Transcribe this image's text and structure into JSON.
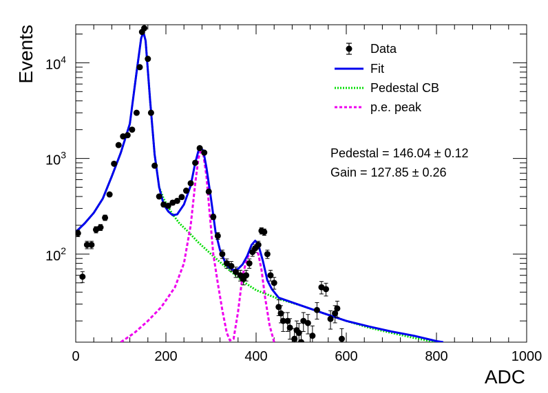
{
  "chart_data": {
    "type": "scatter",
    "xlabel": "ADC",
    "ylabel": "Events",
    "xlim": [
      0,
      1000
    ],
    "ylim": [
      12,
      25000
    ],
    "y_scale": "log",
    "x_ticks": [
      "0",
      "200",
      "400",
      "600",
      "800",
      "1000"
    ],
    "y_ticks": [
      {
        "value": 100,
        "base": "10",
        "exp": "2"
      },
      {
        "value": 1000,
        "base": "10",
        "exp": "3"
      },
      {
        "value": 10000,
        "base": "10",
        "exp": "4"
      }
    ],
    "grid": false,
    "legend_position": "top-right",
    "legend": [
      "Data",
      "Fit",
      "Pedestal CB",
      "p.e. peak"
    ],
    "annotations": [
      "Pedestal = 146.04 ± 0.12",
      "Gain = 127.85 ± 0.26"
    ],
    "colors": {
      "data": "#000000",
      "fit": "#0000ee",
      "pedestal": "#00dd00",
      "pe_peak": "#ee00ee"
    },
    "series": [
      {
        "name": "Data",
        "style": "markers_with_errors",
        "points": [
          [
            5,
            165
          ],
          [
            15,
            58
          ],
          [
            25,
            125
          ],
          [
            35,
            125
          ],
          [
            45,
            180
          ],
          [
            55,
            190
          ],
          [
            65,
            240
          ],
          [
            75,
            420
          ],
          [
            85,
            880
          ],
          [
            95,
            1380
          ],
          [
            105,
            1700
          ],
          [
            115,
            1750
          ],
          [
            125,
            2000
          ],
          [
            135,
            3000
          ],
          [
            142,
            9000
          ],
          [
            147,
            21000
          ],
          [
            152,
            23000
          ],
          [
            160,
            11000
          ],
          [
            167,
            3000
          ],
          [
            175,
            840
          ],
          [
            185,
            400
          ],
          [
            195,
            330
          ],
          [
            205,
            320
          ],
          [
            215,
            345
          ],
          [
            225,
            360
          ],
          [
            235,
            395
          ],
          [
            245,
            460
          ],
          [
            255,
            550
          ],
          [
            265,
            900
          ],
          [
            275,
            1280
          ],
          [
            285,
            1150
          ],
          [
            295,
            450
          ],
          [
            305,
            245
          ],
          [
            315,
            155
          ],
          [
            325,
            100
          ],
          [
            335,
            80
          ],
          [
            345,
            75
          ],
          [
            355,
            65
          ],
          [
            365,
            60
          ],
          [
            372,
            55
          ],
          [
            378,
            60
          ],
          [
            385,
            80
          ],
          [
            392,
            105
          ],
          [
            398,
            115
          ],
          [
            405,
            125
          ],
          [
            412,
            175
          ],
          [
            418,
            170
          ],
          [
            425,
            100
          ],
          [
            432,
            60
          ],
          [
            440,
            50
          ],
          [
            450,
            28
          ],
          [
            455,
            24
          ],
          [
            460,
            20
          ],
          [
            470,
            20
          ],
          [
            475,
            17
          ],
          [
            485,
            13
          ],
          [
            490,
            16
          ],
          [
            495,
            15
          ],
          [
            500,
            12
          ],
          [
            505,
            20
          ],
          [
            515,
            19
          ],
          [
            525,
            14
          ],
          [
            535,
            26
          ],
          [
            545,
            45
          ],
          [
            555,
            43
          ],
          [
            565,
            21
          ],
          [
            575,
            24
          ],
          [
            580,
            27
          ],
          [
            590,
            13
          ]
        ]
      },
      {
        "name": "Fit",
        "points": [
          [
            0,
            170
          ],
          [
            20,
            210
          ],
          [
            40,
            270
          ],
          [
            60,
            380
          ],
          [
            80,
            650
          ],
          [
            100,
            1150
          ],
          [
            120,
            2300
          ],
          [
            135,
            8000
          ],
          [
            145,
            18000
          ],
          [
            150,
            21000
          ],
          [
            155,
            17000
          ],
          [
            165,
            4000
          ],
          [
            175,
            1100
          ],
          [
            185,
            500
          ],
          [
            195,
            330
          ],
          [
            205,
            280
          ],
          [
            215,
            255
          ],
          [
            225,
            260
          ],
          [
            240,
            330
          ],
          [
            255,
            520
          ],
          [
            265,
            900
          ],
          [
            272,
            1200
          ],
          [
            277,
            1300
          ],
          [
            283,
            1200
          ],
          [
            290,
            800
          ],
          [
            300,
            380
          ],
          [
            310,
            170
          ],
          [
            320,
            110
          ],
          [
            330,
            85
          ],
          [
            340,
            72
          ],
          [
            350,
            68
          ],
          [
            360,
            70
          ],
          [
            370,
            78
          ],
          [
            380,
            95
          ],
          [
            390,
            125
          ],
          [
            398,
            138
          ],
          [
            405,
            125
          ],
          [
            415,
            85
          ],
          [
            425,
            53
          ],
          [
            435,
            43
          ],
          [
            450,
            35
          ],
          [
            500,
            29
          ],
          [
            550,
            24
          ],
          [
            600,
            20
          ],
          [
            650,
            17.5
          ],
          [
            700,
            15.5
          ],
          [
            750,
            14
          ],
          [
            800,
            12.3
          ],
          [
            815,
            12
          ]
        ]
      },
      {
        "name": "Pedestal CB",
        "points": [
          [
            0,
            170
          ],
          [
            20,
            210
          ],
          [
            40,
            270
          ],
          [
            60,
            380
          ],
          [
            80,
            650
          ],
          [
            100,
            1150
          ],
          [
            120,
            2300
          ],
          [
            135,
            8000
          ],
          [
            145,
            18000
          ],
          [
            150,
            21000
          ],
          [
            155,
            17000
          ],
          [
            165,
            4000
          ],
          [
            175,
            1100
          ],
          [
            185,
            500
          ],
          [
            195,
            380
          ],
          [
            205,
            310
          ],
          [
            215,
            260
          ],
          [
            230,
            210
          ],
          [
            250,
            170
          ],
          [
            270,
            135
          ],
          [
            300,
            100
          ],
          [
            330,
            75
          ],
          [
            370,
            52
          ],
          [
            400,
            42
          ],
          [
            450,
            34
          ],
          [
            500,
            29
          ],
          [
            550,
            24
          ],
          [
            600,
            20
          ],
          [
            650,
            17
          ],
          [
            700,
            15
          ],
          [
            750,
            13.3
          ],
          [
            790,
            12.2
          ],
          [
            800,
            12
          ]
        ]
      },
      {
        "name": "p.e. peak",
        "points": [
          [
            100,
            12
          ],
          [
            130,
            15
          ],
          [
            160,
            20
          ],
          [
            190,
            28
          ],
          [
            220,
            45
          ],
          [
            240,
            80
          ],
          [
            255,
            200
          ],
          [
            265,
            550
          ],
          [
            272,
            1000
          ],
          [
            277,
            1180
          ],
          [
            283,
            1100
          ],
          [
            290,
            650
          ],
          [
            297,
            270
          ],
          [
            305,
            100
          ],
          [
            315,
            50
          ],
          [
            325,
            26
          ],
          [
            335,
            15
          ],
          [
            342,
            12.5
          ],
          [
            350,
            13
          ],
          [
            360,
            25
          ],
          [
            370,
            60
          ],
          [
            380,
            90
          ],
          [
            390,
            110
          ],
          [
            398,
            112
          ],
          [
            405,
            100
          ],
          [
            412,
            68
          ],
          [
            420,
            35
          ],
          [
            430,
            18
          ],
          [
            440,
            12
          ]
        ]
      }
    ]
  }
}
